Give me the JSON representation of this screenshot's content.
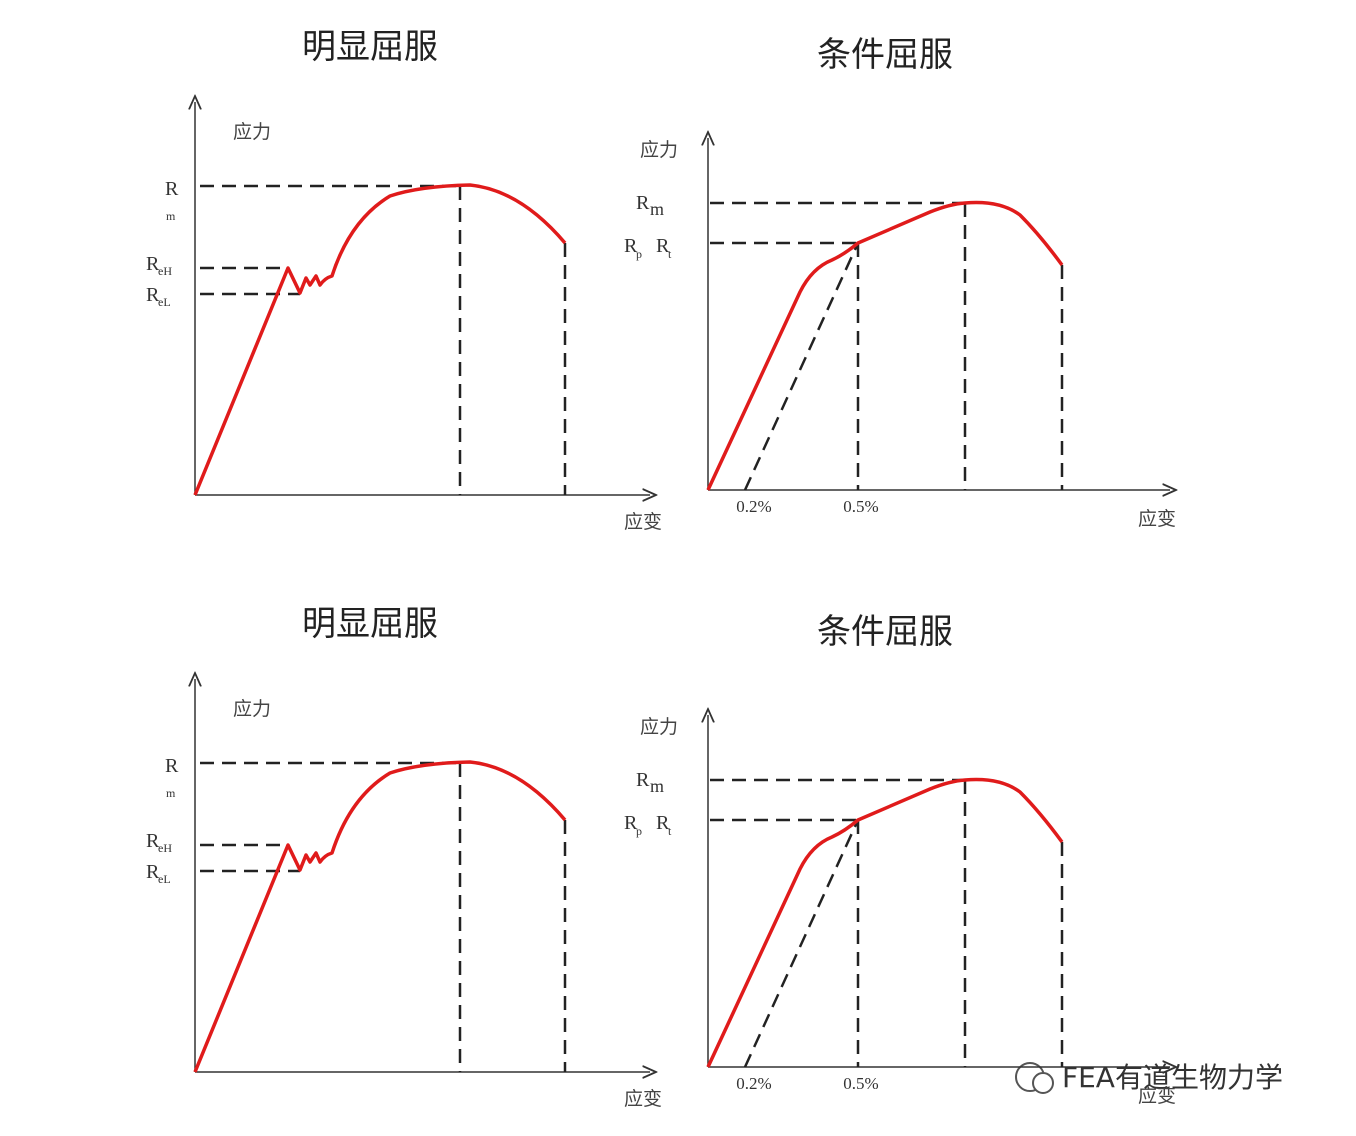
{
  "panels": [
    {
      "title": "明显屈服",
      "y_axis": "应力",
      "x_axis": "应变",
      "labels": [
        {
          "main": "R",
          "sub": "m"
        },
        {
          "main": "R",
          "sub": "eH"
        },
        {
          "main": "R",
          "sub": "eL"
        }
      ]
    },
    {
      "title": "条件屈服",
      "y_axis": "应力",
      "x_axis": "应变",
      "labels": [
        {
          "main": "R",
          "sub": "m"
        },
        {
          "main": "R",
          "sub": "p"
        },
        {
          "main": "R",
          "sub": "t"
        }
      ],
      "strain_ticks": [
        "0.2%",
        "0.5%"
      ]
    },
    {
      "title": "明显屈服",
      "y_axis": "应力",
      "x_axis": "应变",
      "labels": [
        {
          "main": "R",
          "sub": "m"
        },
        {
          "main": "R",
          "sub": "eH"
        },
        {
          "main": "R",
          "sub": "eL"
        }
      ]
    },
    {
      "title": "条件屈服",
      "y_axis": "应力",
      "x_axis": "应变",
      "labels": [
        {
          "main": "R",
          "sub": "m"
        },
        {
          "main": "R",
          "sub": "p"
        },
        {
          "main": "R",
          "sub": "t"
        }
      ],
      "strain_ticks": [
        "0.2%",
        "0.5%"
      ]
    }
  ],
  "watermark": "FEA有道生物力学"
}
